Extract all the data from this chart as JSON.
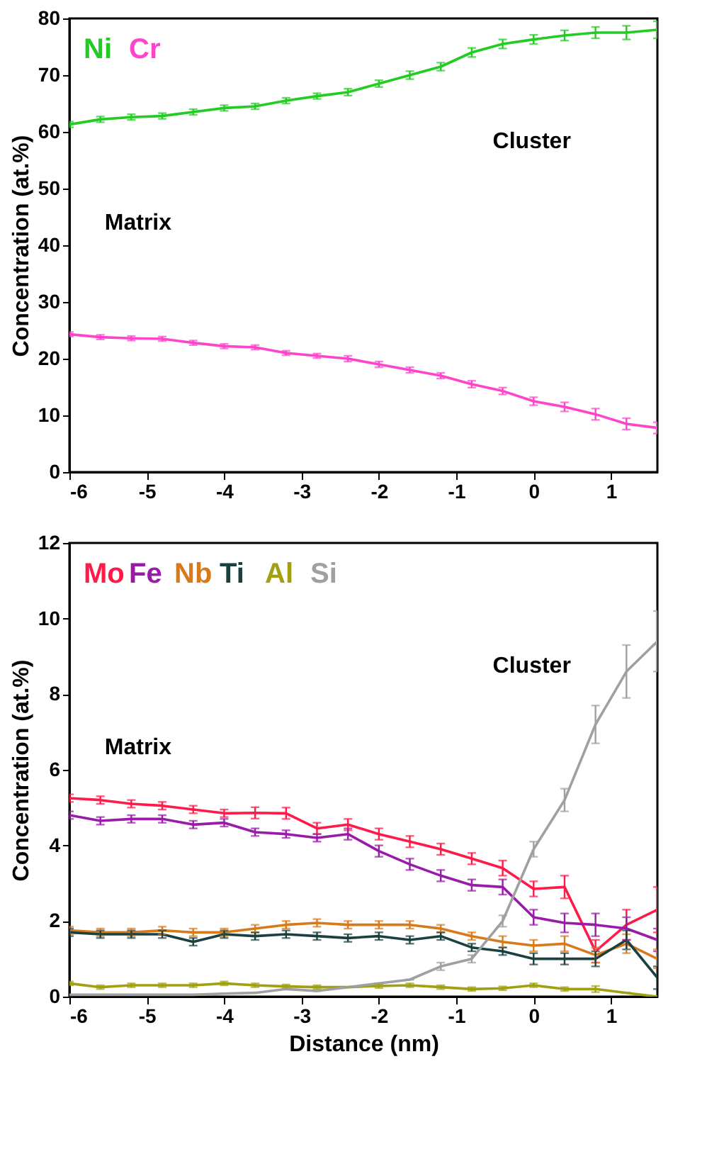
{
  "chart_data": [
    {
      "type": "line",
      "ylabel": "Concentration (at.%)",
      "legend": "top left",
      "marker": "none",
      "line_style": "solid",
      "grid": false,
      "x": [
        -6,
        -5.6,
        -5.2,
        -4.8,
        -4.4,
        -4.0,
        -3.6,
        -3.2,
        -2.8,
        -2.4,
        -2.0,
        -1.6,
        -1.2,
        -0.8,
        -0.4,
        0,
        0.4,
        0.8,
        1.2,
        1.6
      ],
      "xlim": [
        -6,
        1.6
      ],
      "xticks": [
        -6,
        -5,
        -4,
        -3,
        -2,
        -1,
        0,
        1
      ],
      "ylim": [
        0,
        80
      ],
      "yticks": [
        0,
        10,
        20,
        30,
        40,
        50,
        60,
        70,
        80
      ],
      "annotations": [
        "Matrix",
        "Cluster"
      ],
      "series": [
        {
          "name": "Ni",
          "color": "#22cc22",
          "values": [
            61.3,
            62.2,
            62.6,
            62.8,
            63.5,
            64.2,
            64.5,
            65.5,
            66.3,
            67,
            68.5,
            70,
            71.5,
            74,
            75.5,
            76.3,
            77,
            77.5,
            77.5,
            78
          ],
          "errors": [
            0.5,
            0.5,
            0.5,
            0.5,
            0.5,
            0.5,
            0.5,
            0.5,
            0.5,
            0.6,
            0.6,
            0.7,
            0.7,
            0.8,
            0.8,
            0.8,
            0.9,
            1,
            1.2,
            1.5
          ]
        },
        {
          "name": "Cr",
          "color": "#ff44cc",
          "values": [
            24.3,
            23.8,
            23.6,
            23.5,
            22.8,
            22.2,
            22,
            21,
            20.5,
            20,
            19,
            18,
            17,
            15.5,
            14.3,
            12.5,
            11.5,
            10.2,
            8.5,
            7.8
          ],
          "errors": [
            0.4,
            0.4,
            0.4,
            0.4,
            0.4,
            0.4,
            0.4,
            0.4,
            0.4,
            0.5,
            0.5,
            0.5,
            0.5,
            0.6,
            0.6,
            0.7,
            0.8,
            1,
            1,
            1
          ]
        }
      ]
    },
    {
      "type": "line",
      "ylabel": "Concentration (at.%)",
      "xlabel": "Distance (nm)",
      "legend": "top left",
      "marker": "none",
      "line_style": "solid",
      "grid": false,
      "x": [
        -6,
        -5.6,
        -5.2,
        -4.8,
        -4.4,
        -4.0,
        -3.6,
        -3.2,
        -2.8,
        -2.4,
        -2.0,
        -1.6,
        -1.2,
        -0.8,
        -0.4,
        0,
        0.4,
        0.8,
        1.2,
        1.6
      ],
      "xlim": [
        -6,
        1.6
      ],
      "xticks": [
        -6,
        -5,
        -4,
        -3,
        -2,
        -1,
        0,
        1
      ],
      "ylim": [
        0,
        12
      ],
      "yticks": [
        0,
        2,
        4,
        6,
        8,
        10,
        12
      ],
      "annotations": [
        "Matrix",
        "Cluster"
      ],
      "series": [
        {
          "name": "Mo",
          "color": "#ff1a4a",
          "values": [
            5.25,
            5.2,
            5.1,
            5.05,
            4.95,
            4.85,
            4.86,
            4.85,
            4.45,
            4.55,
            4.3,
            4.1,
            3.9,
            3.65,
            3.4,
            2.85,
            2.9,
            1.2,
            1.9,
            2.3
          ],
          "errors": [
            0.1,
            0.1,
            0.1,
            0.1,
            0.1,
            0.1,
            0.15,
            0.15,
            0.15,
            0.15,
            0.15,
            0.15,
            0.15,
            0.15,
            0.2,
            0.2,
            0.3,
            0.3,
            0.4,
            0.6
          ]
        },
        {
          "name": "Fe",
          "color": "#9a1aaa",
          "values": [
            4.8,
            4.65,
            4.7,
            4.7,
            4.55,
            4.6,
            4.35,
            4.3,
            4.2,
            4.3,
            3.85,
            3.5,
            3.2,
            2.95,
            2.9,
            2.1,
            1.95,
            1.9,
            1.8,
            1.5
          ],
          "errors": [
            0.1,
            0.1,
            0.1,
            0.1,
            0.1,
            0.1,
            0.1,
            0.1,
            0.1,
            0.15,
            0.15,
            0.15,
            0.15,
            0.15,
            0.2,
            0.2,
            0.25,
            0.3,
            0.3,
            0.3
          ]
        },
        {
          "name": "Nb",
          "color": "#d97a1a",
          "values": [
            1.75,
            1.7,
            1.7,
            1.75,
            1.7,
            1.7,
            1.8,
            1.9,
            1.95,
            1.9,
            1.9,
            1.9,
            1.8,
            1.6,
            1.45,
            1.35,
            1.4,
            1.1,
            1.4,
            1.0
          ],
          "errors": [
            0.1,
            0.1,
            0.1,
            0.1,
            0.1,
            0.1,
            0.1,
            0.1,
            0.1,
            0.1,
            0.1,
            0.1,
            0.1,
            0.1,
            0.15,
            0.15,
            0.2,
            0.2,
            0.25,
            0.25
          ]
        },
        {
          "name": "Ti",
          "color": "#1a4040",
          "values": [
            1.7,
            1.65,
            1.65,
            1.65,
            1.45,
            1.65,
            1.6,
            1.65,
            1.6,
            1.55,
            1.6,
            1.5,
            1.6,
            1.3,
            1.2,
            1.0,
            1.0,
            1.0,
            1.5,
            0.5
          ],
          "errors": [
            0.1,
            0.1,
            0.1,
            0.1,
            0.1,
            0.1,
            0.1,
            0.1,
            0.1,
            0.1,
            0.1,
            0.1,
            0.1,
            0.1,
            0.1,
            0.15,
            0.15,
            0.2,
            0.25,
            0.3
          ]
        },
        {
          "name": "Al",
          "color": "#a0a010",
          "values": [
            0.35,
            0.25,
            0.3,
            0.3,
            0.3,
            0.35,
            0.3,
            0.27,
            0.25,
            0.25,
            0.28,
            0.3,
            0.25,
            0.2,
            0.22,
            0.3,
            0.2,
            0.2,
            0.1,
            0.0
          ],
          "errors": [
            0.05,
            0.05,
            0.05,
            0.05,
            0.05,
            0.05,
            0.05,
            0.05,
            0.05,
            null,
            0.05,
            0.05,
            0.05,
            0.05,
            0.05,
            0.05,
            0.05,
            0.08,
            null,
            null
          ]
        },
        {
          "name": "Si",
          "color": "#a0a0a0",
          "values": [
            0.05,
            0.05,
            0.05,
            0.05,
            0.05,
            0.08,
            0.1,
            0.2,
            0.15,
            0.25,
            0.35,
            0.45,
            0.8,
            1.0,
            2.0,
            3.9,
            5.2,
            7.2,
            8.6,
            9.4
          ],
          "errors": [
            null,
            null,
            null,
            null,
            null,
            null,
            null,
            null,
            null,
            null,
            null,
            null,
            0.1,
            0.1,
            0.15,
            0.2,
            0.3,
            0.5,
            0.7,
            0.8
          ]
        }
      ]
    }
  ]
}
